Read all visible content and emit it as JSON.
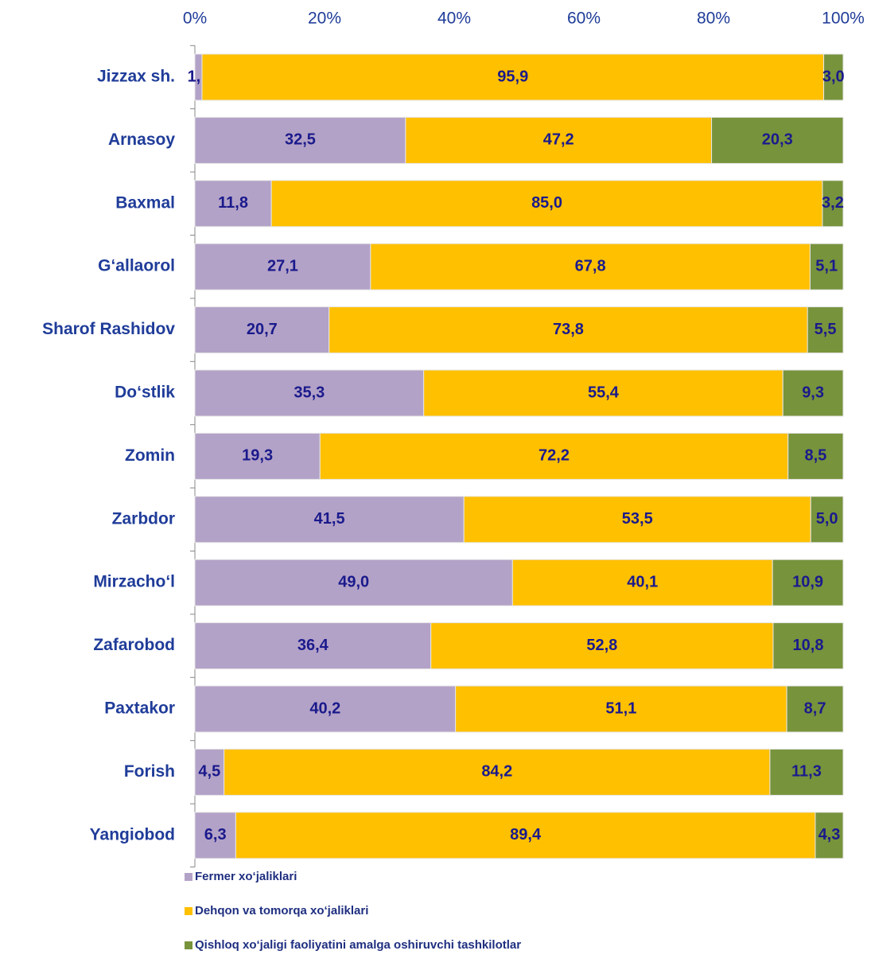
{
  "chart_data": {
    "type": "bar",
    "orientation": "horizontal",
    "stacked": true,
    "categories": [
      "Jizzax sh.",
      "Arnasoy",
      "Baxmal",
      "G‘allaorol",
      "Sharof Rashidov",
      "Do‘stlik",
      "Zomin",
      "Zarbdor",
      "Mirzacho‘l",
      "Zafarobod",
      "Paxtakor",
      "Forish",
      "Yangiobod"
    ],
    "series": [
      {
        "name": "Fermer xo‘jaliklari",
        "color": "#b3a2c7",
        "values": [
          1.1,
          32.5,
          11.8,
          27.1,
          20.7,
          35.3,
          19.3,
          41.5,
          49.0,
          36.4,
          40.2,
          4.5,
          6.3
        ],
        "value_labels": [
          "1,1",
          "32,5",
          "11,8",
          "27,1",
          "20,7",
          "35,3",
          "19,3",
          "41,5",
          "49,0",
          "36,4",
          "40,2",
          "4,5",
          "6,3"
        ]
      },
      {
        "name": "Dehqon va tomorqa xo‘jaliklari",
        "color": "#ffc000",
        "values": [
          95.9,
          47.2,
          85.0,
          67.8,
          73.8,
          55.4,
          72.2,
          53.5,
          40.1,
          52.8,
          51.1,
          84.2,
          89.4
        ],
        "value_labels": [
          "95,9",
          "47,2",
          "85,0",
          "67,8",
          "73,8",
          "55,4",
          "72,2",
          "53,5",
          "40,1",
          "52,8",
          "51,1",
          "84,2",
          "89,4"
        ]
      },
      {
        "name": "Qishloq xo‘jaligi faoliyatini amalga oshiruvchi tashkilotlar",
        "color": "#77933c",
        "values": [
          3.0,
          20.3,
          3.2,
          5.1,
          5.5,
          9.3,
          8.5,
          5.0,
          10.9,
          10.8,
          8.7,
          11.3,
          4.3
        ],
        "value_labels": [
          "3,0",
          "20,3",
          "3,2",
          "5,1",
          "5,5",
          "9,3",
          "8,5",
          "5,0",
          "10,9",
          "10,8",
          "8,7",
          "11,3",
          "4,3"
        ]
      }
    ],
    "xlim": [
      0,
      100
    ],
    "xticks": [
      {
        "value": 0,
        "label": "0%"
      },
      {
        "value": 20,
        "label": "20%"
      },
      {
        "value": 40,
        "label": "40%"
      },
      {
        "value": 60,
        "label": "60%"
      },
      {
        "value": 80,
        "label": "80%"
      },
      {
        "value": 100,
        "label": "100%"
      }
    ],
    "grid": false,
    "legend": "bottom-left"
  }
}
